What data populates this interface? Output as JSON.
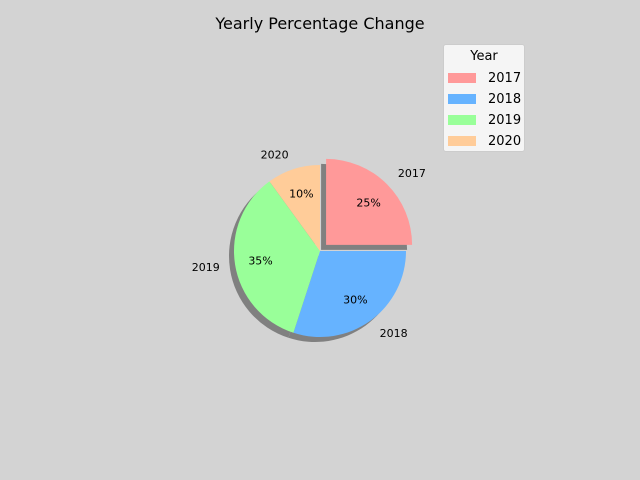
{
  "chart_data": {
    "type": "pie",
    "title": "Yearly Percentage Change",
    "categories": [
      "2017",
      "2018",
      "2019",
      "2020"
    ],
    "values": [
      25,
      30,
      35,
      10
    ],
    "percent_labels": [
      "25%",
      "30%",
      "35%",
      "10%"
    ],
    "colors": [
      "#ff9999",
      "#66b3ff",
      "#99ff99",
      "#ffcc99"
    ],
    "explode": [
      0.1,
      0,
      0,
      0
    ],
    "shadow": true,
    "start_angle_deg": 90,
    "direction": "clockwise",
    "legend": {
      "title": "Year",
      "entries": [
        "2017",
        "2018",
        "2019",
        "2020"
      ],
      "placement": "upper-right"
    }
  }
}
